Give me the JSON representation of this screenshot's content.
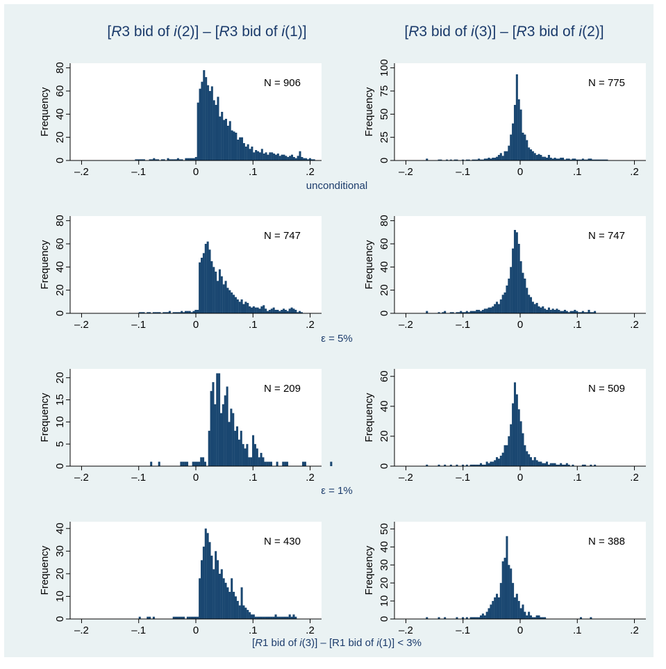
{
  "colors": {
    "bar": "#1a4771",
    "background": "#eaf2f3",
    "plot_bg": "#ffffff",
    "title_text": "#1b3b6b"
  },
  "column_titles": [
    [
      "[",
      "R",
      "3 bid of ",
      "i",
      "(2)] – [",
      "R",
      "3 bid of ",
      "i",
      "(1)]"
    ],
    [
      "[",
      "R",
      "3 bid of ",
      "i",
      "(3)] – [",
      "R",
      "3 bid of ",
      "i",
      "(2)]"
    ]
  ],
  "row_labels": [
    [
      "unconditional"
    ],
    [
      "ε = 5%"
    ],
    [
      "ε = 1%"
    ],
    [
      "[",
      "R",
      "1 bid of ",
      "i",
      "(3)] – [R1 bid of ",
      "i",
      "(1)] < 3%"
    ]
  ],
  "chart_data": [
    {
      "type": "bar",
      "panel": "row1-left",
      "row": 0,
      "col": 0,
      "ylabel": "Frequency",
      "xlabel": "",
      "annotation": "N = 906",
      "xlim": [
        -0.22,
        0.22
      ],
      "ylim": [
        0,
        84
      ],
      "x_ticks": [
        -0.2,
        -0.1,
        0,
        0.1,
        0.2
      ],
      "x_tick_labels": [
        "–.2",
        "–.1",
        "0",
        ".1",
        ".2"
      ],
      "y_ticks": [
        0,
        20,
        40,
        60,
        80
      ],
      "y_tick_labels": [
        "0",
        "20",
        "40",
        "60",
        "80"
      ],
      "bin_start": -0.11,
      "bin_width": 0.0035,
      "values": [
        0,
        1,
        1,
        1,
        1,
        1,
        0,
        0,
        1,
        1,
        2,
        1,
        1,
        0,
        1,
        1,
        0,
        2,
        1,
        1,
        1,
        1,
        2,
        1,
        1,
        0,
        2,
        2,
        2,
        2,
        2,
        3,
        50,
        62,
        68,
        78,
        72,
        65,
        60,
        64,
        52,
        48,
        55,
        38,
        42,
        35,
        36,
        30,
        34,
        26,
        25,
        24,
        18,
        20,
        20,
        15,
        12,
        14,
        10,
        12,
        7,
        9,
        8,
        7,
        10,
        6,
        7,
        5,
        7,
        7,
        6,
        5,
        6,
        4,
        5,
        5,
        4,
        3,
        4,
        5,
        3,
        2,
        4,
        8,
        3,
        2,
        2,
        1,
        2,
        1,
        1
      ]
    },
    {
      "type": "bar",
      "panel": "row1-right",
      "row": 0,
      "col": 1,
      "ylabel": "Frequency",
      "xlabel": "",
      "annotation": "N = 775",
      "xlim": [
        -0.22,
        0.22
      ],
      "ylim": [
        0,
        105
      ],
      "x_ticks": [
        -0.2,
        -0.1,
        0,
        0.1,
        0.2
      ],
      "x_tick_labels": [
        "–.2",
        "–.1",
        "0",
        ".1",
        ".2"
      ],
      "y_ticks": [
        0,
        25,
        50,
        75,
        100
      ],
      "y_tick_labels": [
        "0",
        "25",
        "50",
        "75",
        "100"
      ],
      "bin_start": -0.165,
      "bin_width": 0.0035,
      "values": [
        2,
        0,
        0,
        0,
        0,
        0,
        1,
        1,
        0,
        0,
        1,
        0,
        1,
        0,
        1,
        1,
        0,
        0,
        1,
        0,
        1,
        1,
        0,
        1,
        1,
        1,
        2,
        1,
        1,
        2,
        2,
        3,
        2,
        3,
        3,
        4,
        6,
        8,
        5,
        10,
        10,
        16,
        28,
        40,
        60,
        93,
        66,
        55,
        30,
        28,
        22,
        14,
        12,
        10,
        8,
        6,
        7,
        6,
        4,
        4,
        3,
        6,
        3,
        2,
        3,
        2,
        2,
        3,
        3,
        1,
        2,
        2,
        1,
        2,
        2,
        1,
        1,
        1,
        2,
        1,
        1,
        2,
        2,
        1,
        1,
        1,
        1,
        1,
        1,
        1,
        1
      ]
    },
    {
      "type": "bar",
      "panel": "row2-left",
      "row": 1,
      "col": 0,
      "ylabel": "Frequency",
      "xlabel": "",
      "annotation": "N = 747",
      "xlim": [
        -0.22,
        0.22
      ],
      "ylim": [
        0,
        84
      ],
      "x_ticks": [
        -0.2,
        -0.1,
        0,
        0.1,
        0.2
      ],
      "x_tick_labels": [
        "–.2",
        "–.1",
        "0",
        ".1",
        ".2"
      ],
      "y_ticks": [
        0,
        20,
        40,
        60,
        80
      ],
      "y_tick_labels": [
        "0",
        "20",
        "40",
        "60",
        "80"
      ],
      "bin_start": -0.1,
      "bin_width": 0.0035,
      "values": [
        1,
        1,
        1,
        0,
        1,
        1,
        0,
        1,
        1,
        1,
        1,
        0,
        1,
        1,
        1,
        2,
        0,
        1,
        1,
        1,
        1,
        2,
        1,
        2,
        2,
        2,
        1,
        2,
        3,
        3,
        44,
        48,
        52,
        60,
        62,
        55,
        45,
        40,
        36,
        28,
        38,
        32,
        25,
        28,
        22,
        20,
        18,
        16,
        14,
        12,
        10,
        12,
        8,
        10,
        9,
        6,
        5,
        6,
        5,
        5,
        4,
        6,
        7,
        4,
        2,
        3,
        4,
        5,
        3,
        3,
        2,
        3,
        4,
        3,
        2,
        4,
        5,
        4,
        3,
        1,
        2,
        1
      ]
    },
    {
      "type": "bar",
      "panel": "row2-right",
      "row": 1,
      "col": 1,
      "ylabel": "Frequency",
      "xlabel": "",
      "annotation": "N = 747",
      "xlim": [
        -0.22,
        0.22
      ],
      "ylim": [
        0,
        84
      ],
      "x_ticks": [
        -0.2,
        -0.1,
        0,
        0.1,
        0.2
      ],
      "x_tick_labels": [
        "–.2",
        "–.1",
        "0",
        ".1",
        ".2"
      ],
      "y_ticks": [
        0,
        20,
        40,
        60,
        80
      ],
      "y_tick_labels": [
        "0",
        "20",
        "40",
        "60",
        "80"
      ],
      "bin_start": -0.165,
      "bin_width": 0.0035,
      "values": [
        2,
        0,
        0,
        0,
        0,
        0,
        1,
        0,
        1,
        2,
        0,
        0,
        1,
        1,
        0,
        1,
        1,
        2,
        1,
        1,
        2,
        1,
        2,
        2,
        2,
        3,
        3,
        2,
        3,
        4,
        4,
        5,
        5,
        6,
        8,
        10,
        8,
        12,
        16,
        18,
        24,
        30,
        40,
        56,
        72,
        70,
        60,
        45,
        35,
        30,
        22,
        16,
        14,
        10,
        8,
        9,
        6,
        5,
        6,
        4,
        3,
        5,
        3,
        4,
        3,
        4,
        3,
        2,
        2,
        3,
        2,
        1,
        2,
        2,
        3,
        2,
        1,
        1,
        2,
        1,
        1,
        3,
        1,
        1,
        2
      ]
    },
    {
      "type": "bar",
      "panel": "row3-left",
      "row": 2,
      "col": 0,
      "ylabel": "Frequency",
      "xlabel": "",
      "annotation": "N = 209",
      "xlim": [
        -0.22,
        0.22
      ],
      "ylim": [
        0,
        22
      ],
      "x_ticks": [
        -0.2,
        -0.1,
        0,
        0.1,
        0.2
      ],
      "x_tick_labels": [
        "–.2",
        "–.1",
        "0",
        ".1",
        ".2"
      ],
      "y_ticks": [
        0,
        5,
        10,
        15,
        20
      ],
      "y_tick_labels": [
        "0",
        "5",
        "10",
        "15",
        "20"
      ],
      "bin_start": -0.08,
      "bin_width": 0.0035,
      "values": [
        1,
        0,
        0,
        0,
        1,
        0,
        0,
        0,
        0,
        0,
        0,
        0,
        0,
        0,
        0,
        1,
        1,
        1,
        1,
        0,
        0,
        1,
        1,
        1,
        1,
        2,
        2,
        1,
        0,
        8,
        17,
        19,
        14,
        21,
        21,
        12,
        14,
        16,
        18,
        10,
        13,
        12,
        8,
        9,
        6,
        8,
        5,
        4,
        5,
        2,
        2,
        7,
        5,
        4,
        2,
        3,
        2,
        1,
        1,
        1,
        1,
        0,
        0,
        1,
        0,
        0,
        1,
        1,
        1,
        0,
        0,
        0,
        0,
        0,
        0,
        0,
        1,
        1,
        0,
        0,
        0,
        0,
        0,
        0,
        0,
        0,
        0,
        0,
        0,
        0,
        1
      ]
    },
    {
      "type": "bar",
      "panel": "row3-right",
      "row": 2,
      "col": 1,
      "ylabel": "Frequency",
      "xlabel": "",
      "annotation": "N = 509",
      "xlim": [
        -0.22,
        0.22
      ],
      "ylim": [
        0,
        65
      ],
      "x_ticks": [
        -0.2,
        -0.1,
        0,
        0.1,
        0.2
      ],
      "x_tick_labels": [
        "–.2",
        "–.1",
        "0",
        ".1",
        ".2"
      ],
      "y_ticks": [
        0,
        20,
        40,
        60
      ],
      "y_tick_labels": [
        "0",
        "20",
        "40",
        "60"
      ],
      "bin_start": -0.165,
      "bin_width": 0.0035,
      "values": [
        1,
        0,
        0,
        0,
        0,
        0,
        1,
        0,
        0,
        1,
        0,
        0,
        1,
        0,
        0,
        1,
        0,
        0,
        1,
        0,
        1,
        0,
        1,
        1,
        1,
        1,
        1,
        2,
        1,
        1,
        3,
        2,
        3,
        3,
        4,
        6,
        5,
        7,
        9,
        14,
        14,
        20,
        28,
        42,
        56,
        48,
        38,
        30,
        22,
        14,
        10,
        8,
        6,
        4,
        6,
        4,
        3,
        3,
        2,
        2,
        3,
        1,
        2,
        2,
        2,
        1,
        1,
        2,
        1,
        1,
        2,
        1,
        0,
        1,
        0,
        0,
        0,
        0,
        1,
        1,
        0,
        0,
        1,
        0,
        1
      ]
    },
    {
      "type": "bar",
      "panel": "row4-left",
      "row": 3,
      "col": 0,
      "ylabel": "Frequency",
      "xlabel": "",
      "annotation": "N = 430",
      "xlim": [
        -0.22,
        0.22
      ],
      "ylim": [
        0,
        43
      ],
      "x_ticks": [
        -0.2,
        -0.1,
        0,
        0.1,
        0.2
      ],
      "x_tick_labels": [
        "–.2",
        "–.1",
        "0",
        ".1",
        ".2"
      ],
      "y_ticks": [
        0,
        10,
        20,
        30,
        40
      ],
      "y_tick_labels": [
        "0",
        "10",
        "20",
        "30",
        "40"
      ],
      "bin_start": -0.1,
      "bin_width": 0.0035,
      "values": [
        1,
        0,
        0,
        0,
        1,
        1,
        0,
        1,
        0,
        0,
        0,
        0,
        0,
        0,
        0,
        0,
        0,
        1,
        1,
        1,
        1,
        1,
        1,
        0,
        1,
        1,
        1,
        1,
        1,
        1,
        18,
        26,
        32,
        40,
        38,
        34,
        28,
        22,
        30,
        26,
        20,
        22,
        18,
        16,
        14,
        12,
        18,
        12,
        10,
        8,
        6,
        14,
        6,
        5,
        4,
        3,
        2,
        2,
        1,
        1,
        1,
        1,
        1,
        1,
        1,
        1,
        1,
        1,
        2,
        1,
        1,
        1,
        1,
        1,
        1,
        2,
        1,
        2,
        1
      ]
    },
    {
      "type": "bar",
      "panel": "row4-right",
      "row": 3,
      "col": 1,
      "ylabel": "Frequency",
      "xlabel": "",
      "annotation": "N = 388",
      "xlim": [
        -0.22,
        0.22
      ],
      "ylim": [
        0,
        54
      ],
      "x_ticks": [
        -0.2,
        -0.1,
        0,
        0.1,
        0.2
      ],
      "x_tick_labels": [
        "–.2",
        "–.1",
        "0",
        ".1",
        ".2"
      ],
      "y_ticks": [
        0,
        10,
        20,
        30,
        40,
        50
      ],
      "y_tick_labels": [
        "0",
        "10",
        "20",
        "30",
        "40",
        "50"
      ],
      "bin_start": -0.165,
      "bin_width": 0.0035,
      "values": [
        1,
        0,
        0,
        0,
        0,
        0,
        1,
        0,
        0,
        1,
        0,
        0,
        0,
        0,
        0,
        1,
        0,
        0,
        1,
        0,
        1,
        0,
        1,
        1,
        1,
        1,
        1,
        2,
        3,
        2,
        4,
        6,
        8,
        10,
        12,
        14,
        12,
        20,
        32,
        34,
        46,
        30,
        28,
        20,
        12,
        14,
        10,
        6,
        8,
        4,
        2,
        4,
        2,
        1,
        1,
        2,
        2,
        1,
        1,
        1,
        0,
        0,
        0,
        0,
        0,
        0,
        0,
        0,
        0,
        0,
        0,
        0,
        0,
        0,
        0,
        0,
        0,
        1,
        0,
        0,
        0,
        0,
        1
      ]
    }
  ]
}
